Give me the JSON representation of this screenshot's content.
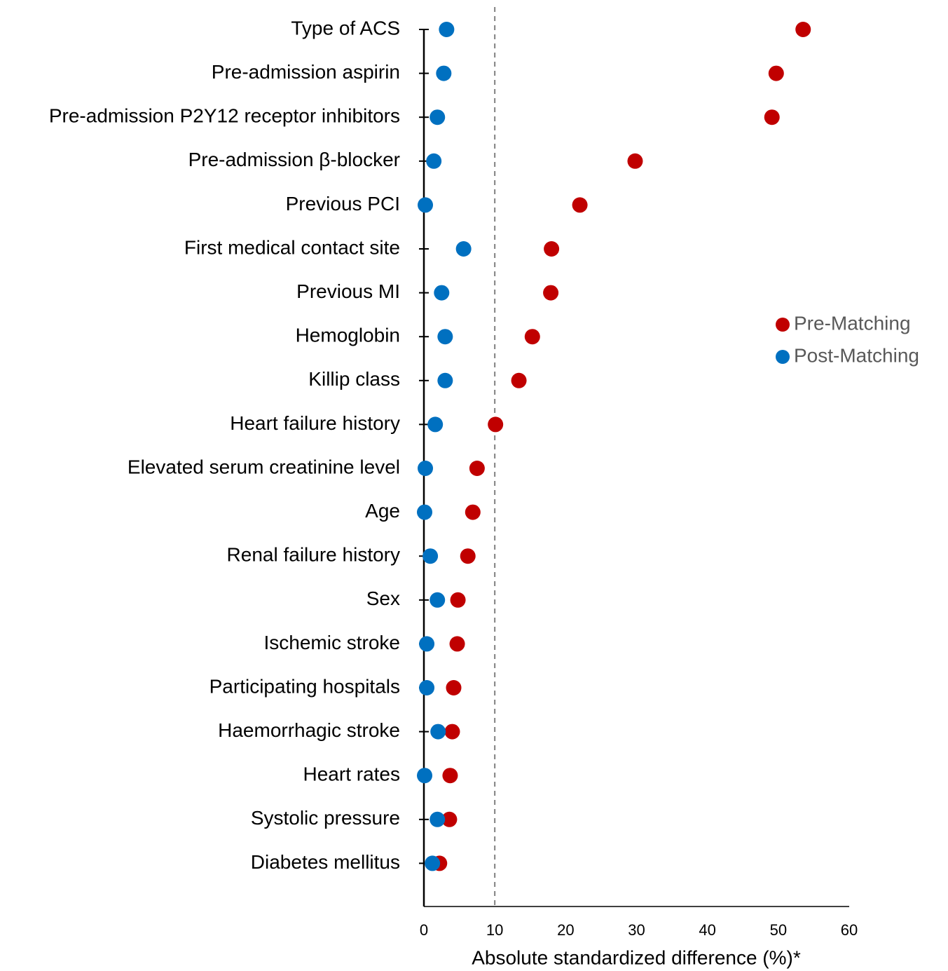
{
  "chart_data": {
    "type": "dot",
    "x_label": "Absolute standardized difference (%)*",
    "categories": [
      "Type of ACS",
      "Pre-admission aspirin",
      "Pre-admission P2Y12 receptor inhibitors",
      "Pre-admission β-blocker",
      "Previous PCI",
      "First medical contact site",
      "Previous MI",
      "Hemoglobin",
      "Killip class",
      "Heart failure history",
      "Elevated serum creatinine level",
      "Age",
      "Renal failure history",
      "Sex",
      "Ischemic stroke",
      "Participating hospitals",
      "Haemorrhagic stroke",
      "Heart rates",
      "Systolic pressure",
      "Diabetes mellitus"
    ],
    "series": [
      {
        "name": "Pre-Matching",
        "color": "#c00000",
        "values": [
          53.5,
          49.7,
          49.1,
          29.8,
          22.0,
          18.0,
          17.9,
          15.3,
          13.4,
          10.1,
          7.5,
          6.9,
          6.2,
          4.8,
          4.7,
          4.2,
          4.0,
          3.7,
          3.6,
          2.2
        ]
      },
      {
        "name": "Post-Matching",
        "color": "#0070c0",
        "values": [
          3.2,
          2.8,
          1.9,
          1.4,
          0.2,
          5.6,
          2.5,
          3.0,
          3.0,
          1.6,
          0.2,
          0.1,
          0.9,
          1.9,
          0.4,
          0.4,
          2.0,
          0.1,
          1.9,
          1.2
        ]
      }
    ],
    "xlim": [
      0,
      60
    ],
    "xticks": [
      0,
      10,
      20,
      30,
      40,
      50,
      60
    ],
    "reference_line": 10,
    "legend": "right"
  }
}
